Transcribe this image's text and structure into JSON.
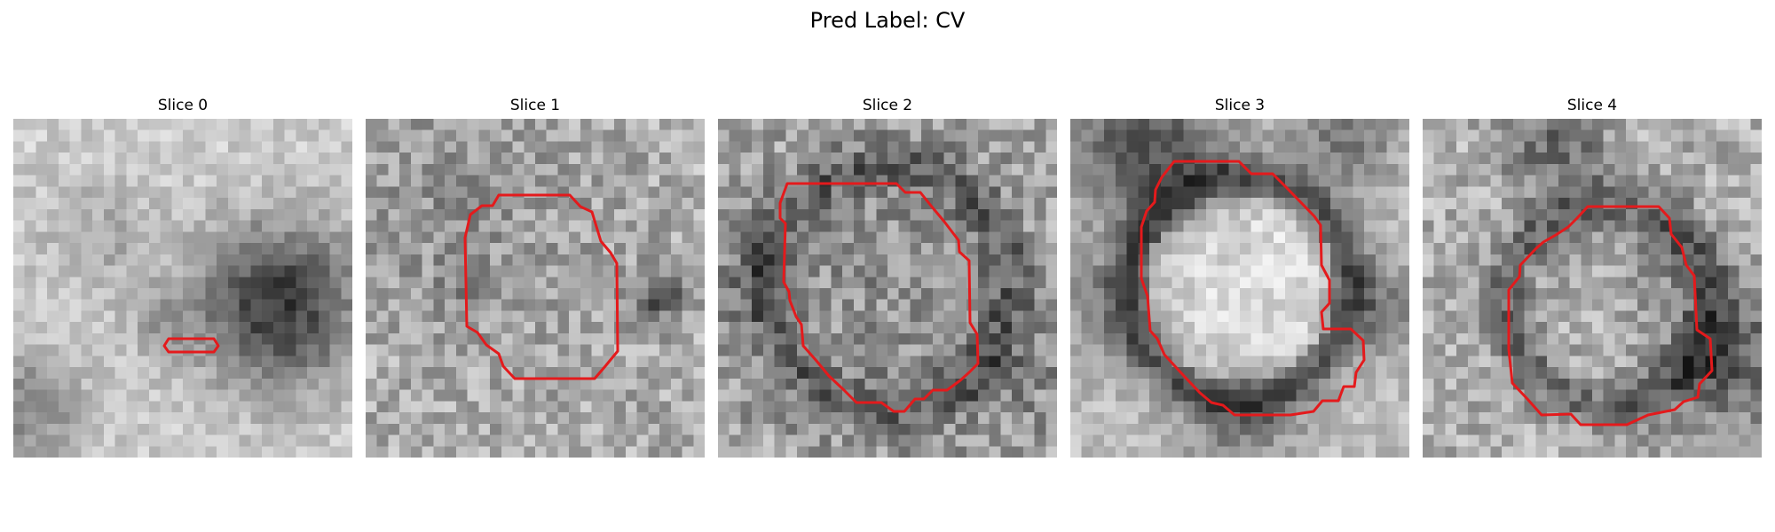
{
  "figure": {
    "title": "Pred Label: CV"
  },
  "panels": [
    {
      "title": "Slice 0"
    },
    {
      "title": "Slice 1"
    },
    {
      "title": "Slice 2"
    },
    {
      "title": "Slice 3"
    },
    {
      "title": "Slice 4"
    }
  ],
  "colors": {
    "contour": "#e41a1c",
    "background": "#ffffff"
  }
}
